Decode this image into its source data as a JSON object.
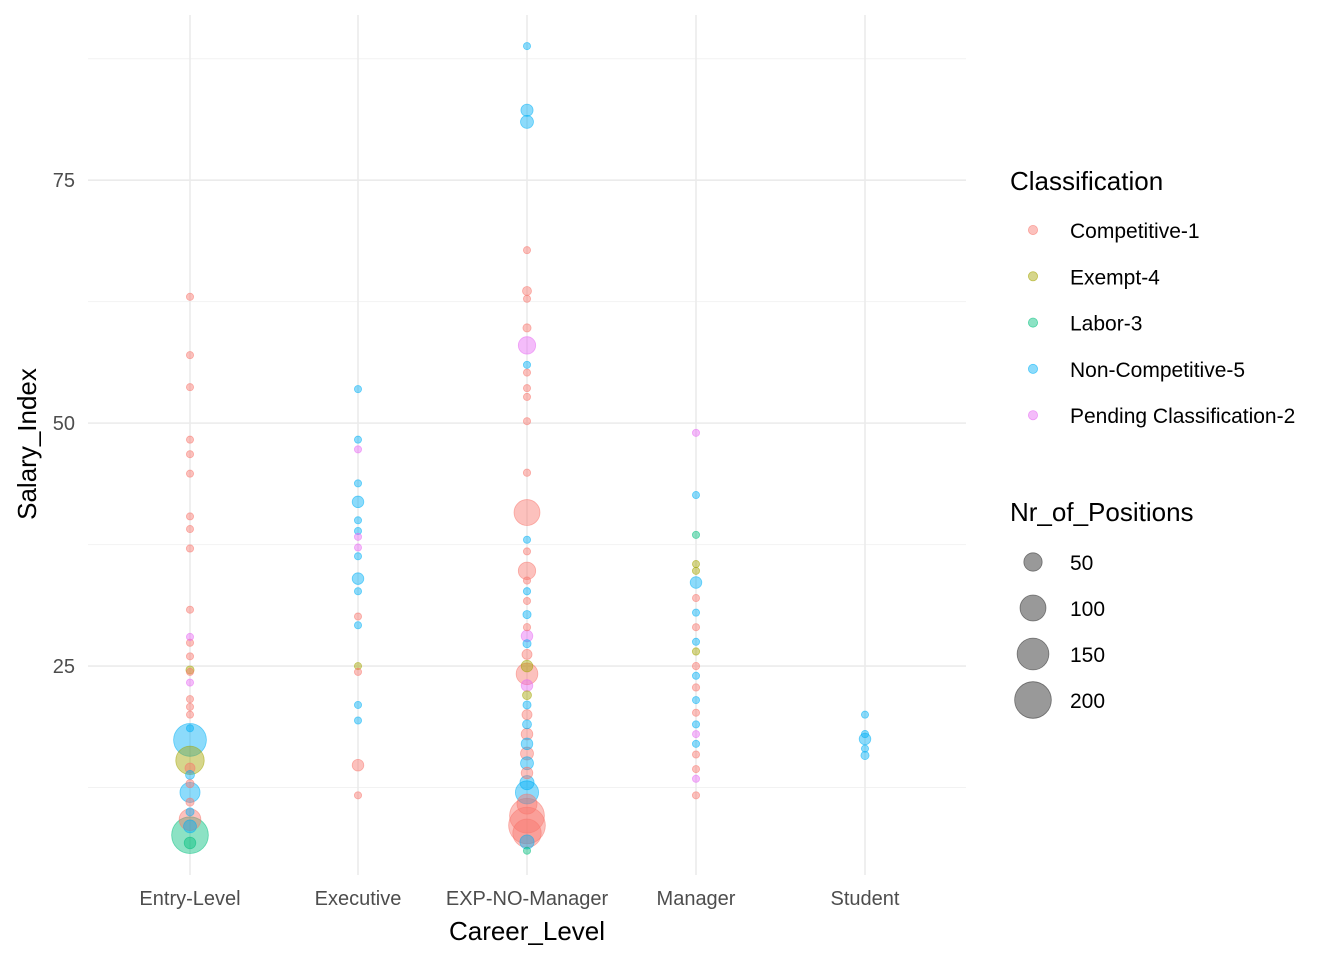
{
  "chart_data": {
    "type": "scatter",
    "xlabel": "Career_Level",
    "ylabel": "Salary_Index",
    "categories": [
      "Entry-Level",
      "Executive",
      "EXP-NO-Manager",
      "Manager",
      "Student"
    ],
    "ylim": [
      3.5,
      92
    ],
    "yticks": [
      25,
      50,
      75
    ],
    "grid": true,
    "legend_position": "right",
    "color_legend": {
      "title": "Classification",
      "entries": [
        {
          "name": "Competitive-1",
          "color": "#F8766D"
        },
        {
          "name": "Exempt-4",
          "color": "#A3A500"
        },
        {
          "name": "Labor-3",
          "color": "#00BF7D"
        },
        {
          "name": "Non-Competitive-5",
          "color": "#00B0F6"
        },
        {
          "name": "Pending Classification-2",
          "color": "#E76BF3"
        }
      ]
    },
    "size_legend": {
      "title": "Nr_of_Positions",
      "entries": [
        {
          "label": "50",
          "value": 50
        },
        {
          "label": "100",
          "value": 100
        },
        {
          "label": "150",
          "value": 150
        },
        {
          "label": "200",
          "value": 200
        }
      ]
    },
    "points": [
      {
        "x": "Entry-Level",
        "y": 63.0,
        "c": "Competitive-1",
        "n": 2
      },
      {
        "x": "Entry-Level",
        "y": 57.0,
        "c": "Competitive-1",
        "n": 2
      },
      {
        "x": "Entry-Level",
        "y": 53.7,
        "c": "Competitive-1",
        "n": 3
      },
      {
        "x": "Entry-Level",
        "y": 48.3,
        "c": "Competitive-1",
        "n": 3
      },
      {
        "x": "Entry-Level",
        "y": 46.8,
        "c": "Competitive-1",
        "n": 2
      },
      {
        "x": "Entry-Level",
        "y": 44.8,
        "c": "Competitive-1",
        "n": 5
      },
      {
        "x": "Entry-Level",
        "y": 40.4,
        "c": "Competitive-1",
        "n": 2
      },
      {
        "x": "Entry-Level",
        "y": 39.1,
        "c": "Competitive-1",
        "n": 2
      },
      {
        "x": "Entry-Level",
        "y": 37.1,
        "c": "Competitive-1",
        "n": 8
      },
      {
        "x": "Entry-Level",
        "y": 30.8,
        "c": "Competitive-1",
        "n": 3
      },
      {
        "x": "Entry-Level",
        "y": 28.0,
        "c": "Pending Classification-2",
        "n": 2
      },
      {
        "x": "Entry-Level",
        "y": 27.4,
        "c": "Competitive-1",
        "n": 4
      },
      {
        "x": "Entry-Level",
        "y": 26.0,
        "c": "Competitive-1",
        "n": 3
      },
      {
        "x": "Entry-Level",
        "y": 24.6,
        "c": "Exempt-4",
        "n": 10
      },
      {
        "x": "Entry-Level",
        "y": 24.4,
        "c": "Competitive-1",
        "n": 6
      },
      {
        "x": "Entry-Level",
        "y": 23.3,
        "c": "Pending Classification-2",
        "n": 5
      },
      {
        "x": "Entry-Level",
        "y": 21.6,
        "c": "Competitive-1",
        "n": 5
      },
      {
        "x": "Entry-Level",
        "y": 20.8,
        "c": "Competitive-1",
        "n": 4
      },
      {
        "x": "Entry-Level",
        "y": 20.0,
        "c": "Competitive-1",
        "n": 6
      },
      {
        "x": "Entry-Level",
        "y": 18.6,
        "c": "Non-Competitive-5",
        "n": 5
      },
      {
        "x": "Entry-Level",
        "y": 17.4,
        "c": "Non-Competitive-5",
        "n": 160
      },
      {
        "x": "Entry-Level",
        "y": 15.3,
        "c": "Exempt-4",
        "n": 120
      },
      {
        "x": "Entry-Level",
        "y": 14.5,
        "c": "Competitive-1",
        "n": 15
      },
      {
        "x": "Entry-Level",
        "y": 13.8,
        "c": "Non-Competitive-5",
        "n": 12
      },
      {
        "x": "Entry-Level",
        "y": 12.9,
        "c": "Competitive-1",
        "n": 10
      },
      {
        "x": "Entry-Level",
        "y": 12.0,
        "c": "Non-Competitive-5",
        "n": 60
      },
      {
        "x": "Entry-Level",
        "y": 11.0,
        "c": "Competitive-1",
        "n": 10
      },
      {
        "x": "Entry-Level",
        "y": 10.0,
        "c": "Non-Competitive-5",
        "n": 10
      },
      {
        "x": "Entry-Level",
        "y": 9.2,
        "c": "Competitive-1",
        "n": 70
      },
      {
        "x": "Entry-Level",
        "y": 8.5,
        "c": "Non-Competitive-5",
        "n": 25
      },
      {
        "x": "Entry-Level",
        "y": 7.6,
        "c": "Labor-3",
        "n": 200
      },
      {
        "x": "Entry-Level",
        "y": 6.8,
        "c": "Labor-3",
        "n": 20
      },
      {
        "x": "Executive",
        "y": 53.5,
        "c": "Non-Competitive-5",
        "n": 2
      },
      {
        "x": "Executive",
        "y": 48.3,
        "c": "Non-Competitive-5",
        "n": 2
      },
      {
        "x": "Executive",
        "y": 47.3,
        "c": "Pending Classification-2",
        "n": 2
      },
      {
        "x": "Executive",
        "y": 43.8,
        "c": "Non-Competitive-5",
        "n": 2
      },
      {
        "x": "Executive",
        "y": 41.9,
        "c": "Non-Competitive-5",
        "n": 20
      },
      {
        "x": "Executive",
        "y": 40.0,
        "c": "Non-Competitive-5",
        "n": 2
      },
      {
        "x": "Executive",
        "y": 38.9,
        "c": "Non-Competitive-5",
        "n": 3
      },
      {
        "x": "Executive",
        "y": 38.3,
        "c": "Pending Classification-2",
        "n": 2
      },
      {
        "x": "Executive",
        "y": 37.2,
        "c": "Pending Classification-2",
        "n": 2
      },
      {
        "x": "Executive",
        "y": 36.3,
        "c": "Non-Competitive-5",
        "n": 3
      },
      {
        "x": "Executive",
        "y": 34.0,
        "c": "Non-Competitive-5",
        "n": 20
      },
      {
        "x": "Executive",
        "y": 32.7,
        "c": "Non-Competitive-5",
        "n": 3
      },
      {
        "x": "Executive",
        "y": 30.1,
        "c": "Competitive-1",
        "n": 3
      },
      {
        "x": "Executive",
        "y": 29.2,
        "c": "Non-Competitive-5",
        "n": 2
      },
      {
        "x": "Executive",
        "y": 25.0,
        "c": "Exempt-4",
        "n": 3
      },
      {
        "x": "Executive",
        "y": 24.4,
        "c": "Competitive-1",
        "n": 2
      },
      {
        "x": "Executive",
        "y": 21.0,
        "c": "Non-Competitive-5",
        "n": 3
      },
      {
        "x": "Executive",
        "y": 19.4,
        "c": "Non-Competitive-5",
        "n": 2
      },
      {
        "x": "Executive",
        "y": 14.8,
        "c": "Competitive-1",
        "n": 20
      },
      {
        "x": "Executive",
        "y": 11.7,
        "c": "Competitive-1",
        "n": 2
      },
      {
        "x": "EXP-NO-Manager",
        "y": 88.8,
        "c": "Non-Competitive-5",
        "n": 2
      },
      {
        "x": "EXP-NO-Manager",
        "y": 82.2,
        "c": "Non-Competitive-5",
        "n": 22
      },
      {
        "x": "EXP-NO-Manager",
        "y": 81.0,
        "c": "Non-Competitive-5",
        "n": 25
      },
      {
        "x": "EXP-NO-Manager",
        "y": 67.8,
        "c": "Competitive-1",
        "n": 5
      },
      {
        "x": "EXP-NO-Manager",
        "y": 63.6,
        "c": "Competitive-1",
        "n": 12
      },
      {
        "x": "EXP-NO-Manager",
        "y": 62.8,
        "c": "Competitive-1",
        "n": 3
      },
      {
        "x": "EXP-NO-Manager",
        "y": 59.8,
        "c": "Competitive-1",
        "n": 10
      },
      {
        "x": "EXP-NO-Manager",
        "y": 58.0,
        "c": "Pending Classification-2",
        "n": 45
      },
      {
        "x": "EXP-NO-Manager",
        "y": 56.0,
        "c": "Non-Competitive-5",
        "n": 2
      },
      {
        "x": "EXP-NO-Manager",
        "y": 55.2,
        "c": "Competitive-1",
        "n": 2
      },
      {
        "x": "EXP-NO-Manager",
        "y": 53.6,
        "c": "Competitive-1",
        "n": 3
      },
      {
        "x": "EXP-NO-Manager",
        "y": 52.7,
        "c": "Competitive-1",
        "n": 2
      },
      {
        "x": "EXP-NO-Manager",
        "y": 50.2,
        "c": "Competitive-1",
        "n": 6
      },
      {
        "x": "EXP-NO-Manager",
        "y": 44.9,
        "c": "Competitive-1",
        "n": 8
      },
      {
        "x": "EXP-NO-Manager",
        "y": 40.8,
        "c": "Competitive-1",
        "n": 100
      },
      {
        "x": "EXP-NO-Manager",
        "y": 38.0,
        "c": "Non-Competitive-5",
        "n": 6
      },
      {
        "x": "EXP-NO-Manager",
        "y": 36.8,
        "c": "Competitive-1",
        "n": 2
      },
      {
        "x": "EXP-NO-Manager",
        "y": 34.8,
        "c": "Competitive-1",
        "n": 45
      },
      {
        "x": "EXP-NO-Manager",
        "y": 33.8,
        "c": "Competitive-1",
        "n": 8
      },
      {
        "x": "EXP-NO-Manager",
        "y": 32.7,
        "c": "Non-Competitive-5",
        "n": 8
      },
      {
        "x": "EXP-NO-Manager",
        "y": 31.7,
        "c": "Competitive-1",
        "n": 6
      },
      {
        "x": "EXP-NO-Manager",
        "y": 30.3,
        "c": "Non-Competitive-5",
        "n": 10
      },
      {
        "x": "EXP-NO-Manager",
        "y": 29.0,
        "c": "Competitive-1",
        "n": 8
      },
      {
        "x": "EXP-NO-Manager",
        "y": 28.1,
        "c": "Pending Classification-2",
        "n": 20
      },
      {
        "x": "EXP-NO-Manager",
        "y": 27.3,
        "c": "Non-Competitive-5",
        "n": 10
      },
      {
        "x": "EXP-NO-Manager",
        "y": 26.2,
        "c": "Competitive-1",
        "n": 15
      },
      {
        "x": "EXP-NO-Manager",
        "y": 25.0,
        "c": "Exempt-4",
        "n": 20
      },
      {
        "x": "EXP-NO-Manager",
        "y": 24.2,
        "c": "Competitive-1",
        "n": 70
      },
      {
        "x": "EXP-NO-Manager",
        "y": 23.0,
        "c": "Pending Classification-2",
        "n": 20
      },
      {
        "x": "EXP-NO-Manager",
        "y": 22.0,
        "c": "Exempt-4",
        "n": 12
      },
      {
        "x": "EXP-NO-Manager",
        "y": 21.0,
        "c": "Non-Competitive-5",
        "n": 10
      },
      {
        "x": "EXP-NO-Manager",
        "y": 20.0,
        "c": "Competitive-1",
        "n": 15
      },
      {
        "x": "EXP-NO-Manager",
        "y": 19.0,
        "c": "Non-Competitive-5",
        "n": 12
      },
      {
        "x": "EXP-NO-Manager",
        "y": 18.0,
        "c": "Competitive-1",
        "n": 20
      },
      {
        "x": "EXP-NO-Manager",
        "y": 17.0,
        "c": "Non-Competitive-5",
        "n": 20
      },
      {
        "x": "EXP-NO-Manager",
        "y": 16.0,
        "c": "Competitive-1",
        "n": 25
      },
      {
        "x": "EXP-NO-Manager",
        "y": 15.0,
        "c": "Non-Competitive-5",
        "n": 25
      },
      {
        "x": "EXP-NO-Manager",
        "y": 14.0,
        "c": "Competitive-1",
        "n": 20
      },
      {
        "x": "EXP-NO-Manager",
        "y": 13.0,
        "c": "Non-Competitive-5",
        "n": 30
      },
      {
        "x": "EXP-NO-Manager",
        "y": 12.0,
        "c": "Non-Competitive-5",
        "n": 80
      },
      {
        "x": "EXP-NO-Manager",
        "y": 10.8,
        "c": "Competitive-1",
        "n": 60
      },
      {
        "x": "EXP-NO-Manager",
        "y": 9.6,
        "c": "Competitive-1",
        "n": 180
      },
      {
        "x": "EXP-NO-Manager",
        "y": 8.6,
        "c": "Competitive-1",
        "n": 200
      },
      {
        "x": "EXP-NO-Manager",
        "y": 7.8,
        "c": "Competitive-1",
        "n": 120
      },
      {
        "x": "EXP-NO-Manager",
        "y": 6.9,
        "c": "Non-Competitive-5",
        "n": 30
      },
      {
        "x": "EXP-NO-Manager",
        "y": 6.0,
        "c": "Labor-3",
        "n": 5
      },
      {
        "x": "Manager",
        "y": 49.0,
        "c": "Pending Classification-2",
        "n": 2
      },
      {
        "x": "Manager",
        "y": 42.6,
        "c": "Non-Competitive-5",
        "n": 2
      },
      {
        "x": "Manager",
        "y": 38.5,
        "c": "Labor-3",
        "n": 3
      },
      {
        "x": "Manager",
        "y": 35.5,
        "c": "Exempt-4",
        "n": 3
      },
      {
        "x": "Manager",
        "y": 34.8,
        "c": "Exempt-4",
        "n": 3
      },
      {
        "x": "Manager",
        "y": 33.6,
        "c": "Non-Competitive-5",
        "n": 20
      },
      {
        "x": "Manager",
        "y": 32.0,
        "c": "Competitive-1",
        "n": 5
      },
      {
        "x": "Manager",
        "y": 30.5,
        "c": "Non-Competitive-5",
        "n": 5
      },
      {
        "x": "Manager",
        "y": 29.0,
        "c": "Competitive-1",
        "n": 5
      },
      {
        "x": "Manager",
        "y": 27.5,
        "c": "Non-Competitive-5",
        "n": 5
      },
      {
        "x": "Manager",
        "y": 26.5,
        "c": "Exempt-4",
        "n": 8
      },
      {
        "x": "Manager",
        "y": 25.0,
        "c": "Competitive-1",
        "n": 8
      },
      {
        "x": "Manager",
        "y": 24.0,
        "c": "Non-Competitive-5",
        "n": 5
      },
      {
        "x": "Manager",
        "y": 22.8,
        "c": "Competitive-1",
        "n": 8
      },
      {
        "x": "Manager",
        "y": 21.5,
        "c": "Non-Competitive-5",
        "n": 5
      },
      {
        "x": "Manager",
        "y": 20.2,
        "c": "Competitive-1",
        "n": 5
      },
      {
        "x": "Manager",
        "y": 19.0,
        "c": "Non-Competitive-5",
        "n": 5
      },
      {
        "x": "Manager",
        "y": 18.0,
        "c": "Pending Classification-2",
        "n": 3
      },
      {
        "x": "Manager",
        "y": 17.0,
        "c": "Non-Competitive-5",
        "n": 5
      },
      {
        "x": "Manager",
        "y": 15.9,
        "c": "Competitive-1",
        "n": 3
      },
      {
        "x": "Manager",
        "y": 14.4,
        "c": "Competitive-1",
        "n": 3
      },
      {
        "x": "Manager",
        "y": 13.4,
        "c": "Pending Classification-2",
        "n": 5
      },
      {
        "x": "Manager",
        "y": 11.7,
        "c": "Competitive-1",
        "n": 5
      },
      {
        "x": "Student",
        "y": 20.0,
        "c": "Non-Competitive-5",
        "n": 2
      },
      {
        "x": "Student",
        "y": 18.0,
        "c": "Non-Competitive-5",
        "n": 8
      },
      {
        "x": "Student",
        "y": 17.5,
        "c": "Non-Competitive-5",
        "n": 20
      },
      {
        "x": "Student",
        "y": 16.5,
        "c": "Non-Competitive-5",
        "n": 5
      },
      {
        "x": "Student",
        "y": 15.8,
        "c": "Non-Competitive-5",
        "n": 10
      }
    ]
  }
}
